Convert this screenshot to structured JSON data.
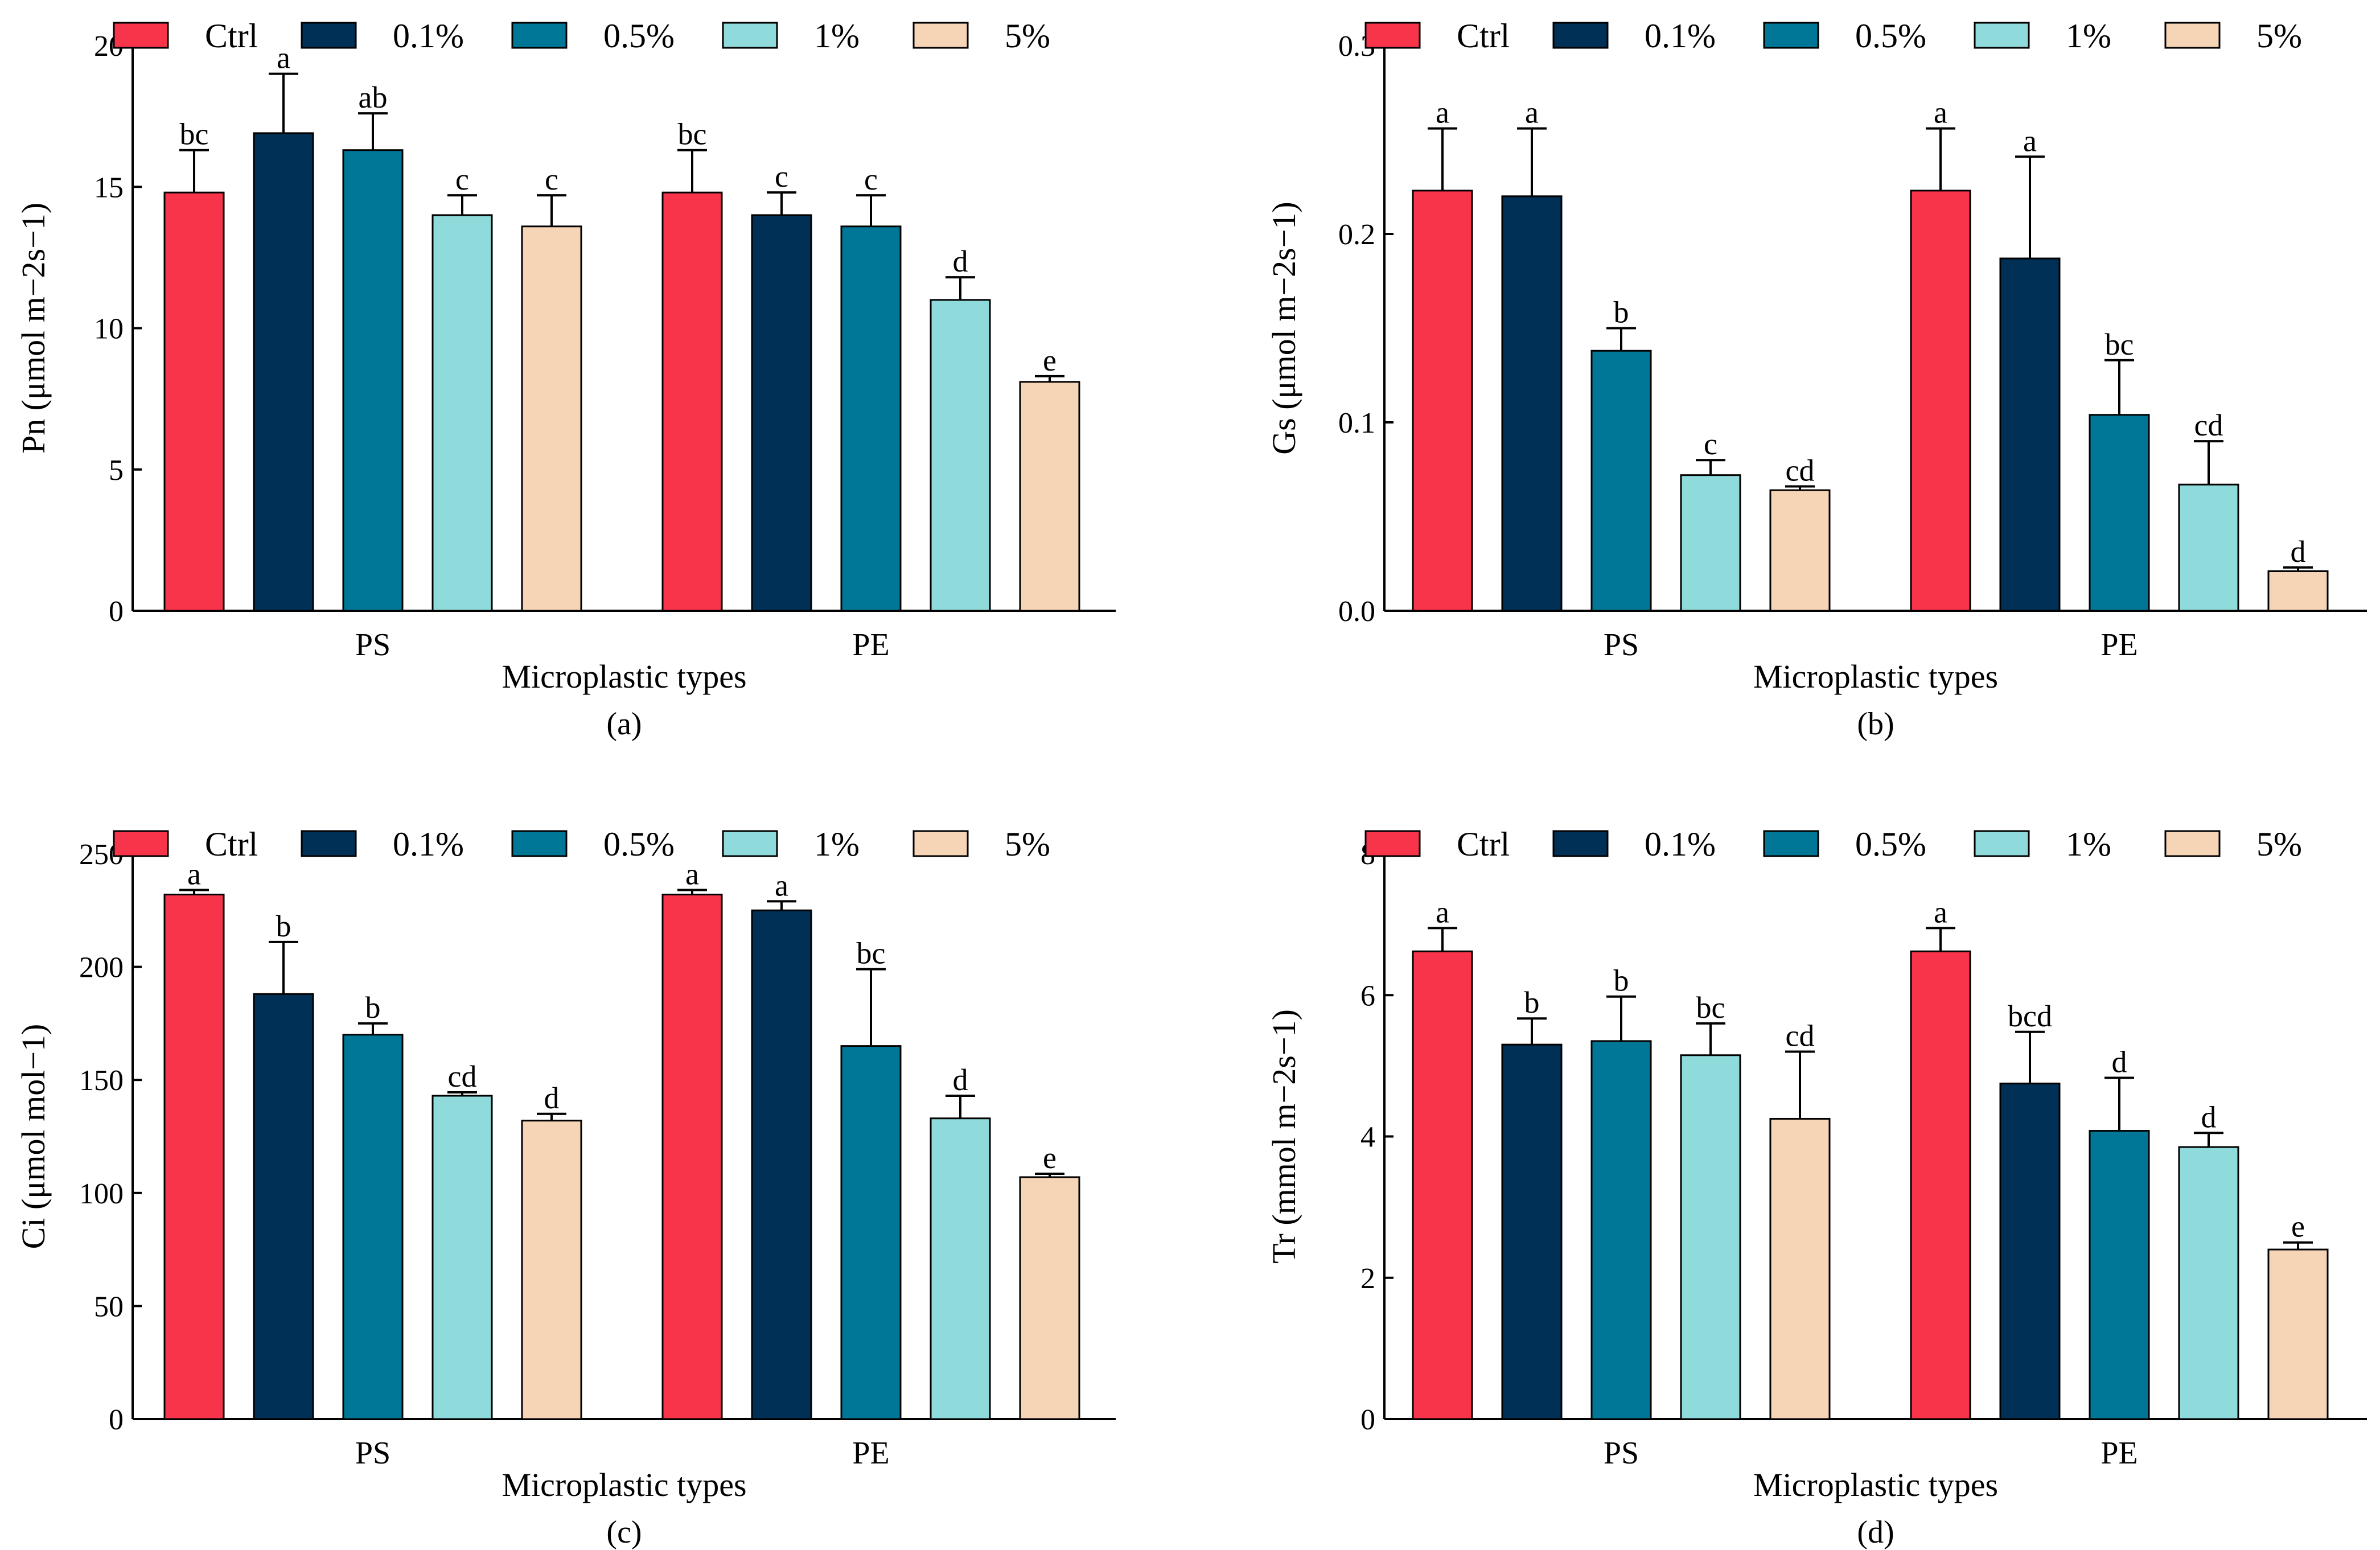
{
  "figure": {
    "legend_labels": [
      "Ctrl",
      "0.1%",
      "0.5%",
      "1%",
      "5%"
    ],
    "colors": {
      "Ctrl": "#f7344a",
      "0.1%": "#003056",
      "0.5%": "#007797",
      "1%": "#8fdadb",
      "5%": "#f6d5b6",
      "edge": "#000000"
    }
  },
  "chart_data": [
    {
      "id": "a",
      "type": "bar",
      "panel_label": "(a)",
      "xlabel": "Microplastic types",
      "ylabel": "Pn (μmol m−2s−1)",
      "ylim": [
        0,
        20
      ],
      "yticks": [
        0,
        5,
        10,
        15,
        20
      ],
      "ytick_labels": [
        "0",
        "5",
        "10",
        "15",
        "20"
      ],
      "groups": [
        "PS",
        "PE"
      ],
      "series": [
        {
          "name": "Ctrl",
          "values": [
            14.8,
            14.8
          ],
          "errors": [
            1.5,
            1.5
          ],
          "letters": [
            "bc",
            "bc"
          ]
        },
        {
          "name": "0.1%",
          "values": [
            16.9,
            14.0
          ],
          "errors": [
            2.1,
            0.8
          ],
          "letters": [
            "a",
            "c"
          ]
        },
        {
          "name": "0.5%",
          "values": [
            16.3,
            13.6
          ],
          "errors": [
            1.3,
            1.1
          ],
          "letters": [
            "ab",
            "c"
          ]
        },
        {
          "name": "1%",
          "values": [
            14.0,
            11.0
          ],
          "errors": [
            0.7,
            0.8
          ],
          "letters": [
            "c",
            "d"
          ]
        },
        {
          "name": "5%",
          "values": [
            13.6,
            8.1
          ],
          "errors": [
            1.1,
            0.2
          ],
          "letters": [
            "c",
            "e"
          ]
        }
      ]
    },
    {
      "id": "b",
      "type": "bar",
      "panel_label": "(b)",
      "xlabel": "Microplastic types",
      "ylabel": "Gs (μmol m−2s−1)",
      "ylim": [
        0,
        0.3
      ],
      "yticks": [
        0,
        0.1,
        0.2,
        0.3
      ],
      "ytick_labels": [
        "0.0",
        "0.1",
        "0.2",
        "0.3"
      ],
      "groups": [
        "PS",
        "PE"
      ],
      "series": [
        {
          "name": "Ctrl",
          "values": [
            0.223,
            0.223
          ],
          "errors": [
            0.033,
            0.033
          ],
          "letters": [
            "a",
            "a"
          ]
        },
        {
          "name": "0.1%",
          "values": [
            0.22,
            0.187
          ],
          "errors": [
            0.036,
            0.054
          ],
          "letters": [
            "a",
            "a"
          ]
        },
        {
          "name": "0.5%",
          "values": [
            0.138,
            0.104
          ],
          "errors": [
            0.012,
            0.029
          ],
          "letters": [
            "b",
            "bc"
          ]
        },
        {
          "name": "1%",
          "values": [
            0.072,
            0.067
          ],
          "errors": [
            0.008,
            0.023
          ],
          "letters": [
            "c",
            "cd"
          ]
        },
        {
          "name": "5%",
          "values": [
            0.064,
            0.021
          ],
          "errors": [
            0.002,
            0.002
          ],
          "letters": [
            "cd",
            "d"
          ]
        }
      ]
    },
    {
      "id": "c",
      "type": "bar",
      "panel_label": "(c)",
      "xlabel": "Microplastic types",
      "ylabel": "Ci (μmol mol−1)",
      "ylim": [
        0,
        250
      ],
      "yticks": [
        0,
        50,
        100,
        150,
        200,
        250
      ],
      "ytick_labels": [
        "0",
        "50",
        "100",
        "150",
        "200",
        "250"
      ],
      "groups": [
        "PS",
        "PE"
      ],
      "series": [
        {
          "name": "Ctrl",
          "values": [
            232,
            232
          ],
          "errors": [
            2,
            2
          ],
          "letters": [
            "a",
            "a"
          ]
        },
        {
          "name": "0.1%",
          "values": [
            188,
            225
          ],
          "errors": [
            23,
            4
          ],
          "letters": [
            "b",
            "a"
          ]
        },
        {
          "name": "0.5%",
          "values": [
            170,
            165
          ],
          "errors": [
            5,
            34
          ],
          "letters": [
            "b",
            "bc"
          ]
        },
        {
          "name": "1%",
          "values": [
            143,
            133
          ],
          "errors": [
            1.5,
            10
          ],
          "letters": [
            "cd",
            "d"
          ]
        },
        {
          "name": "5%",
          "values": [
            132,
            107
          ],
          "errors": [
            3,
            1.5
          ],
          "letters": [
            "d",
            "e"
          ]
        }
      ]
    },
    {
      "id": "d",
      "type": "bar",
      "panel_label": "(d)",
      "xlabel": "Microplastic types",
      "ylabel": "Tr (mmol m−2s−1)",
      "ylim": [
        0,
        8
      ],
      "yticks": [
        0,
        2,
        4,
        6,
        8
      ],
      "ytick_labels": [
        "0",
        "2",
        "4",
        "6",
        "8"
      ],
      "groups": [
        "PS",
        "PE"
      ],
      "series": [
        {
          "name": "Ctrl",
          "values": [
            6.62,
            6.62
          ],
          "errors": [
            0.33,
            0.33
          ],
          "letters": [
            "a",
            "a"
          ]
        },
        {
          "name": "0.1%",
          "values": [
            5.3,
            4.75
          ],
          "errors": [
            0.37,
            0.73
          ],
          "letters": [
            "b",
            "bcd"
          ]
        },
        {
          "name": "0.5%",
          "values": [
            5.35,
            4.08
          ],
          "errors": [
            0.63,
            0.75
          ],
          "letters": [
            "b",
            "d"
          ]
        },
        {
          "name": "1%",
          "values": [
            5.15,
            3.85
          ],
          "errors": [
            0.45,
            0.2
          ],
          "letters": [
            "bc",
            "d"
          ]
        },
        {
          "name": "5%",
          "values": [
            4.25,
            2.4
          ],
          "errors": [
            0.95,
            0.1
          ],
          "letters": [
            "cd",
            "e"
          ]
        }
      ]
    }
  ]
}
